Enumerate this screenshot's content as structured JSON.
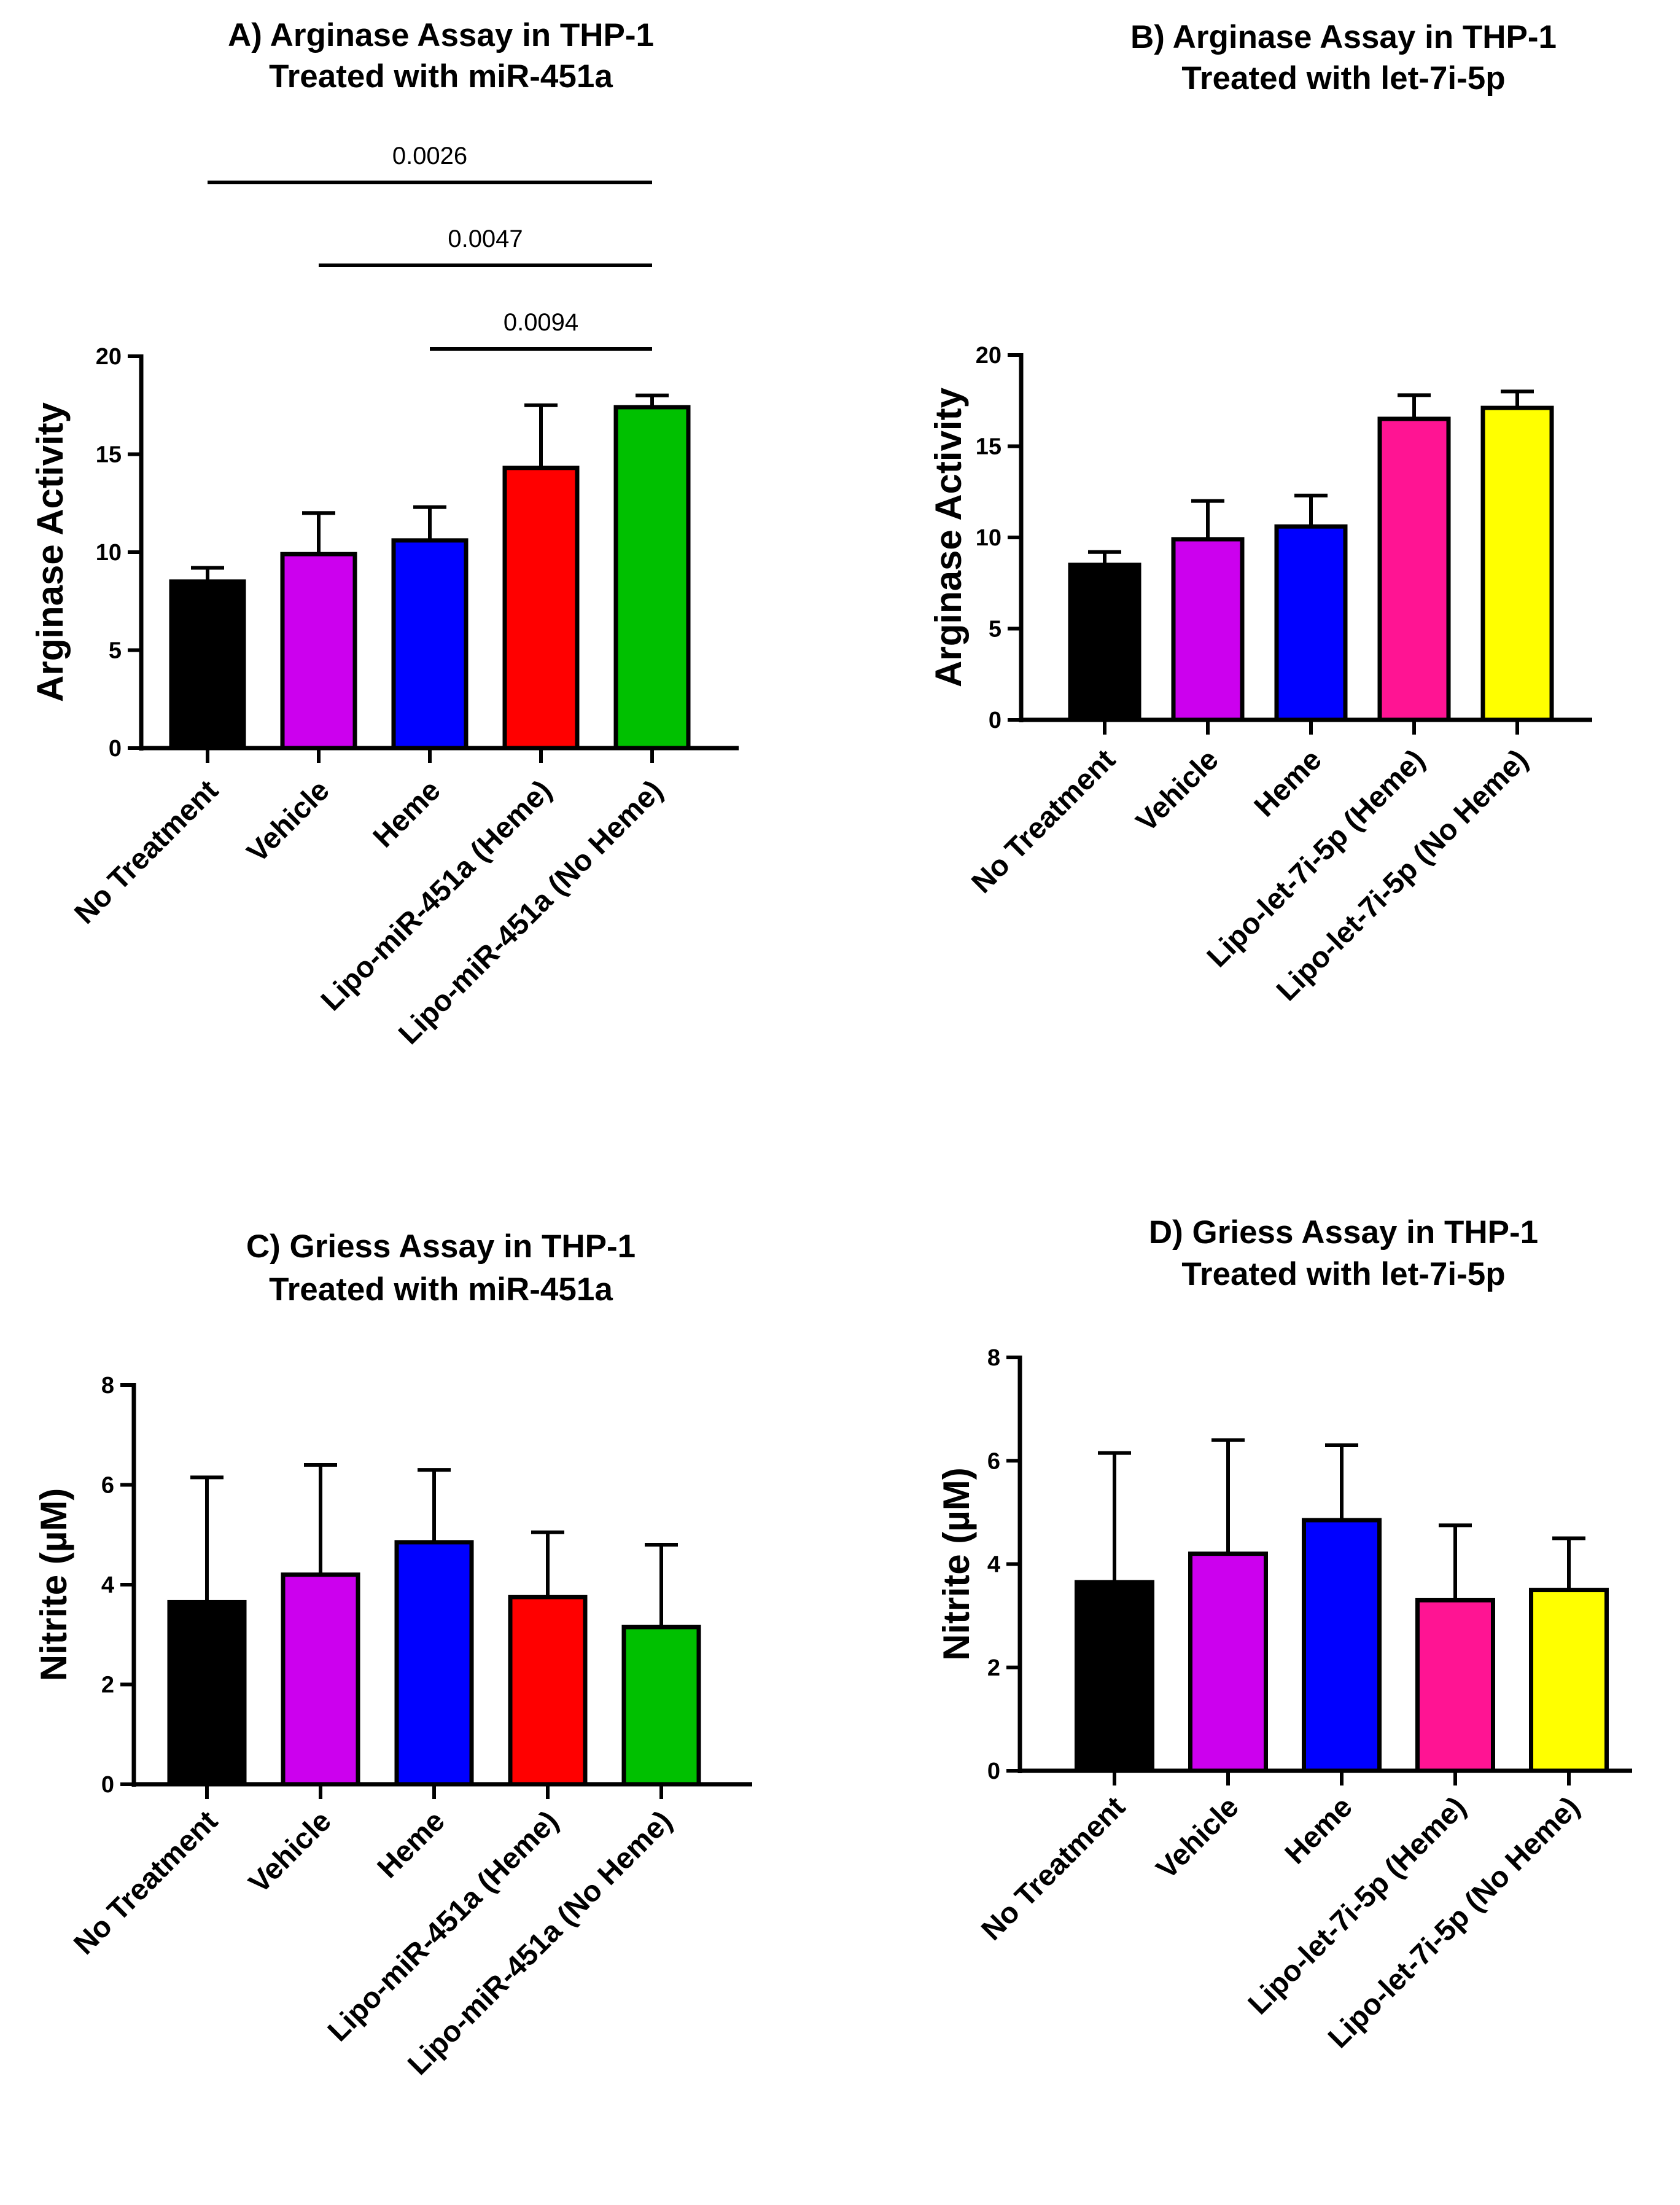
{
  "chart_data": [
    {
      "id": "A",
      "type": "bar",
      "title": [
        "A) Arginase Assay in THP-1",
        "Treated with miR-451a"
      ],
      "xlabel": "",
      "ylabel": "Arginase Activity",
      "ylim": [
        0,
        20
      ],
      "yticks": [
        "0",
        "5",
        "10",
        "15",
        "20"
      ],
      "categories": [
        "No Treatment",
        "Vehicle",
        "Heme",
        "Lipo-miR-451a (Heme)",
        "Lipo-miR-451a (No Heme)"
      ],
      "values": [
        8.5,
        9.9,
        10.6,
        14.3,
        17.4
      ],
      "errors": [
        0.7,
        2.1,
        1.7,
        3.2,
        0.6
      ],
      "colors": [
        "#000000",
        "#cc00ee",
        "#0000ff",
        "#ff0000",
        "#00c000"
      ],
      "significance": [
        {
          "from": 0,
          "to": 4,
          "label": "0.0026"
        },
        {
          "from": 1,
          "to": 4,
          "label": "0.0047"
        },
        {
          "from": 2,
          "to": 4,
          "label": "0.0094"
        }
      ]
    },
    {
      "id": "B",
      "type": "bar",
      "title": [
        "B) Arginase Assay in THP-1",
        "Treated with let-7i-5p"
      ],
      "xlabel": "",
      "ylabel": "Arginase Activity",
      "ylim": [
        0,
        20
      ],
      "yticks": [
        "0",
        "5",
        "10",
        "15",
        "20"
      ],
      "categories": [
        "No Treatment",
        "Vehicle",
        "Heme",
        "Lipo-let-7i-5p (Heme)",
        "Lipo-let-7i-5p (No Heme)"
      ],
      "values": [
        8.5,
        9.9,
        10.6,
        16.5,
        17.1
      ],
      "errors": [
        0.7,
        2.1,
        1.7,
        1.3,
        0.9
      ],
      "colors": [
        "#000000",
        "#cc00ee",
        "#0000ff",
        "#ff1493",
        "#ffff00"
      ],
      "significance": []
    },
    {
      "id": "C",
      "type": "bar",
      "title": [
        "C) Griess Assay in THP-1",
        "Treated with miR-451a"
      ],
      "xlabel": "",
      "ylabel": "Nitrite (µM)",
      "ylim": [
        0,
        8
      ],
      "yticks": [
        "0",
        "2",
        "4",
        "6",
        "8"
      ],
      "categories": [
        "No Treatment",
        "Vehicle",
        "Heme",
        "Lipo-miR-451a (Heme)",
        "Lipo-miR-451a (No Heme)"
      ],
      "values": [
        3.65,
        4.2,
        4.85,
        3.75,
        3.15
      ],
      "errors": [
        2.5,
        2.2,
        1.45,
        1.3,
        1.65
      ],
      "colors": [
        "#000000",
        "#cc00ee",
        "#0000ff",
        "#ff0000",
        "#00c000"
      ],
      "significance": []
    },
    {
      "id": "D",
      "type": "bar",
      "title": [
        "D) Griess Assay in THP-1",
        "Treated with let-7i-5p"
      ],
      "xlabel": "",
      "ylabel": "Nitrite (µM)",
      "ylim": [
        0,
        8
      ],
      "yticks": [
        "0",
        "2",
        "4",
        "6",
        "8"
      ],
      "categories": [
        "No Treatment",
        "Vehicle",
        "Heme",
        "Lipo-let-7i-5p (Heme)",
        "Lipo-let-7i-5p (No Heme)"
      ],
      "values": [
        3.65,
        4.2,
        4.85,
        3.3,
        3.5
      ],
      "errors": [
        2.5,
        2.2,
        1.45,
        1.45,
        1.0
      ],
      "colors": [
        "#000000",
        "#cc00ee",
        "#0000ff",
        "#ff1493",
        "#ffff00"
      ],
      "significance": []
    }
  ]
}
